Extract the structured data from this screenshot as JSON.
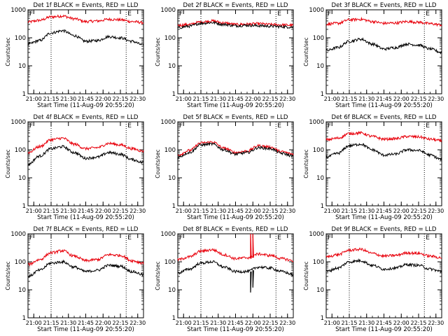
{
  "colors": {
    "events": "#000000",
    "lld": "#e8000b",
    "axis": "#000000",
    "background": "#ffffff"
  },
  "panel_labels": {
    "flag_left": "F",
    "flag_right": "E"
  },
  "chart_data": [
    {
      "type": "line",
      "title": "Det 1f BLACK = Events, RED = LLD",
      "xlabel": "Start Time (11-Aug-09 20:55:20)",
      "ylabel": "Counts/sec",
      "ylog": true,
      "ylim": [
        1,
        1000
      ],
      "yticks": [
        "1",
        "10",
        "100",
        "1000"
      ],
      "xticks": [
        "21:00",
        "21:15",
        "21:30",
        "21:45",
        "22:00",
        "22:15",
        "22:30"
      ],
      "xlim_min": [
        0,
        100
      ],
      "vlines_min": [
        20,
        85
      ],
      "grid": false,
      "legend": "none",
      "x_min": [
        0,
        10,
        20,
        30,
        40,
        50,
        60,
        70,
        80,
        90,
        100
      ],
      "series": [
        {
          "name": "BLACK = Events",
          "values": [
            60,
            80,
            150,
            180,
            120,
            75,
            80,
            110,
            100,
            75,
            55
          ]
        },
        {
          "name": "RED = LLD",
          "values": [
            370,
            420,
            560,
            600,
            480,
            380,
            400,
            460,
            440,
            380,
            350
          ]
        }
      ]
    },
    {
      "type": "line",
      "title": "Det 2f BLACK = Events, RED = LLD",
      "xlabel": "Start Time (11-Aug-09 20:55:20)",
      "ylabel": "Counts/sec",
      "ylog": true,
      "ylim": [
        1,
        1000
      ],
      "yticks": [
        "1",
        "10",
        "100",
        "1000"
      ],
      "xticks": [
        "21:00",
        "21:15",
        "21:30",
        "21:45",
        "22:00",
        "22:15",
        "22:30"
      ],
      "xlim_min": [
        0,
        100
      ],
      "vlines_min": [
        20,
        85
      ],
      "grid": false,
      "legend": "none",
      "x_min": [
        0,
        10,
        20,
        30,
        40,
        50,
        60,
        70,
        80,
        90,
        100
      ],
      "series": [
        {
          "name": "BLACK = Events",
          "values": [
            230,
            260,
            330,
            350,
            300,
            270,
            280,
            270,
            260,
            250,
            240
          ]
        },
        {
          "name": "RED = LLD",
          "values": [
            280,
            300,
            370,
            400,
            340,
            300,
            310,
            320,
            300,
            290,
            280
          ]
        }
      ]
    },
    {
      "type": "line",
      "title": "Det 3f BLACK = Events, RED = LLD",
      "xlabel": "Start Time (11-Aug-09 20:55:20)",
      "ylabel": "Counts/sec",
      "ylog": true,
      "ylim": [
        1,
        1000
      ],
      "yticks": [
        "1",
        "10",
        "100",
        "1000"
      ],
      "xticks": [
        "21:00",
        "21:15",
        "21:30",
        "21:45",
        "22:00",
        "22:15",
        "22:30"
      ],
      "xlim_min": [
        0,
        100
      ],
      "vlines_min": [
        20,
        85
      ],
      "grid": false,
      "legend": "none",
      "x_min": [
        0,
        10,
        20,
        30,
        40,
        50,
        60,
        70,
        80,
        90,
        100
      ],
      "series": [
        {
          "name": "BLACK = Events",
          "values": [
            35,
            45,
            75,
            90,
            60,
            40,
            45,
            60,
            55,
            40,
            30
          ]
        },
        {
          "name": "RED = LLD",
          "values": [
            310,
            330,
            440,
            460,
            380,
            330,
            340,
            380,
            360,
            320,
            290
          ]
        }
      ]
    },
    {
      "type": "line",
      "title": "Det 4f BLACK = Events, RED = LLD",
      "xlabel": "Start Time (11-Aug-09 20:55:20)",
      "ylabel": "Counts/sec",
      "ylog": true,
      "ylim": [
        1,
        1000
      ],
      "yticks": [
        "1",
        "10",
        "100",
        "1000"
      ],
      "xticks": [
        "21:00",
        "21:15",
        "21:30",
        "21:45",
        "22:00",
        "22:15",
        "22:30"
      ],
      "xlim_min": [
        0,
        100
      ],
      "vlines_min": [
        20,
        85
      ],
      "grid": false,
      "legend": "none",
      "x_min": [
        0,
        10,
        20,
        30,
        40,
        50,
        60,
        70,
        80,
        90,
        100
      ],
      "series": [
        {
          "name": "BLACK = Events",
          "values": [
            30,
            60,
            110,
            130,
            80,
            50,
            55,
            80,
            70,
            45,
            35
          ]
        },
        {
          "name": "RED = LLD",
          "values": [
            80,
            130,
            230,
            260,
            160,
            110,
            120,
            170,
            150,
            110,
            90
          ]
        }
      ]
    },
    {
      "type": "line",
      "title": "Det 5f BLACK = Events, RED = LLD",
      "xlabel": "Start Time (11-Aug-09 20:55:20)",
      "ylabel": "Counts/sec",
      "ylog": true,
      "ylim": [
        1,
        1000
      ],
      "yticks": [
        "1",
        "10",
        "100",
        "1000"
      ],
      "xticks": [
        "21:00",
        "21:15",
        "21:30",
        "21:45",
        "22:00",
        "22:15",
        "22:30"
      ],
      "xlim_min": [
        0,
        100
      ],
      "vlines_min": [
        20,
        85
      ],
      "grid": false,
      "legend": "none",
      "x_min": [
        0,
        10,
        20,
        30,
        40,
        50,
        60,
        70,
        80,
        90,
        100
      ],
      "series": [
        {
          "name": "BLACK = Events",
          "values": [
            55,
            80,
            150,
            160,
            100,
            70,
            80,
            120,
            110,
            75,
            60
          ]
        },
        {
          "name": "RED = LLD",
          "values": [
            65,
            95,
            175,
            190,
            115,
            80,
            90,
            140,
            125,
            85,
            70
          ]
        }
      ]
    },
    {
      "type": "line",
      "title": "Det 6f BLACK = Events, RED = LLD",
      "xlabel": "Start Time (11-Aug-09 20:55:20)",
      "ylabel": "Counts/sec",
      "ylog": true,
      "ylim": [
        1,
        1000
      ],
      "yticks": [
        "1",
        "10",
        "100",
        "1000"
      ],
      "xticks": [
        "21:00",
        "21:15",
        "21:30",
        "21:45",
        "22:00",
        "22:15",
        "22:30"
      ],
      "xlim_min": [
        0,
        100
      ],
      "vlines_min": [
        20,
        85
      ],
      "grid": false,
      "legend": "none",
      "x_min": [
        0,
        10,
        20,
        30,
        40,
        50,
        60,
        70,
        80,
        90,
        100
      ],
      "series": [
        {
          "name": "BLACK = Events",
          "values": [
            55,
            75,
            140,
            160,
            100,
            65,
            70,
            100,
            95,
            65,
            45
          ]
        },
        {
          "name": "RED = LLD",
          "values": [
            230,
            260,
            380,
            400,
            300,
            240,
            250,
            300,
            290,
            240,
            210
          ]
        }
      ]
    },
    {
      "type": "line",
      "title": "Det 7f BLACK = Events, RED = LLD",
      "xlabel": "Start Time (11-Aug-09 20:55:20)",
      "ylabel": "Counts/sec",
      "ylog": true,
      "ylim": [
        1,
        1000
      ],
      "yticks": [
        "1",
        "10",
        "100",
        "1000"
      ],
      "xticks": [
        "21:00",
        "21:15",
        "21:30",
        "21:45",
        "22:00",
        "22:15",
        "22:30"
      ],
      "xlim_min": [
        0,
        100
      ],
      "vlines_min": [
        20,
        85
      ],
      "grid": false,
      "legend": "none",
      "x_min": [
        0,
        10,
        20,
        30,
        40,
        50,
        60,
        70,
        80,
        90,
        100
      ],
      "series": [
        {
          "name": "BLACK = Events",
          "values": [
            30,
            50,
            90,
            100,
            65,
            45,
            50,
            75,
            70,
            45,
            35
          ]
        },
        {
          "name": "RED = LLD",
          "values": [
            80,
            120,
            210,
            250,
            160,
            110,
            120,
            180,
            170,
            110,
            90
          ]
        }
      ]
    },
    {
      "type": "line",
      "title": "Det 8f BLACK = Events, RED = LLD",
      "xlabel": "Start Time (11-Aug-09 20:55:20)",
      "ylabel": "Counts/sec",
      "ylog": true,
      "ylim": [
        1,
        1000
      ],
      "yticks": [
        "1",
        "10",
        "100",
        "1000"
      ],
      "xticks": [
        "21:00",
        "21:15",
        "21:30",
        "21:45",
        "22:00",
        "22:15",
        "22:30"
      ],
      "xlim_min": [
        0,
        100
      ],
      "vlines_min": [
        20,
        85
      ],
      "grid": false,
      "legend": "none",
      "x_min": [
        0,
        10,
        20,
        30,
        40,
        50,
        60,
        70,
        80,
        90,
        100
      ],
      "series": [
        {
          "name": "BLACK = Events",
          "values": [
            40,
            55,
            90,
            100,
            65,
            45,
            45,
            65,
            60,
            45,
            35
          ]
        },
        {
          "name": "RED = LLD",
          "values": [
            120,
            150,
            240,
            270,
            180,
            130,
            140,
            190,
            170,
            130,
            110
          ]
        }
      ],
      "spikes": [
        {
          "series": "RED = LLD",
          "x_min": 63,
          "values": [
            130,
            1000,
            130
          ]
        },
        {
          "series": "RED = LLD",
          "x_min": 65,
          "values": [
            140,
            1000,
            140
          ]
        },
        {
          "series": "BLACK = Events",
          "x_min": 63,
          "values": [
            45,
            8,
            45
          ]
        },
        {
          "series": "BLACK = Events",
          "x_min": 65,
          "values": [
            50,
            12,
            50
          ]
        }
      ]
    },
    {
      "type": "line",
      "title": "Det 9f BLACK = Events, RED = LLD",
      "xlabel": "Start Time (11-Aug-09 20:55:20)",
      "ylabel": "Counts/sec",
      "ylog": true,
      "ylim": [
        1,
        1000
      ],
      "yticks": [
        "1",
        "10",
        "100",
        "1000"
      ],
      "xticks": [
        "21:00",
        "21:15",
        "21:30",
        "21:45",
        "22:00",
        "22:15",
        "22:30"
      ],
      "xlim_min": [
        0,
        100
      ],
      "vlines_min": [
        20,
        85
      ],
      "grid": false,
      "legend": "none",
      "x_min": [
        0,
        10,
        20,
        30,
        40,
        50,
        60,
        70,
        80,
        90,
        100
      ],
      "series": [
        {
          "name": "BLACK = Events",
          "values": [
            45,
            60,
            100,
            110,
            75,
            55,
            60,
            80,
            75,
            55,
            45
          ]
        },
        {
          "name": "RED = LLD",
          "values": [
            150,
            180,
            260,
            280,
            200,
            160,
            170,
            210,
            200,
            160,
            140
          ]
        }
      ]
    }
  ]
}
